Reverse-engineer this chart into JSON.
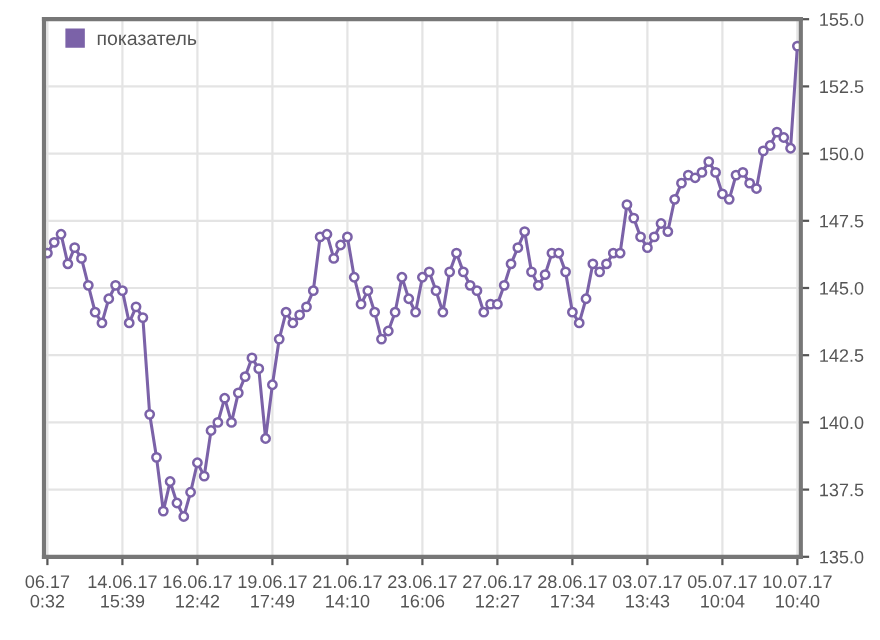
{
  "chart_data": {
    "type": "line",
    "marker": "circle",
    "grid": true,
    "legend": "top left",
    "categories": [
      "06.17\n0:32",
      null,
      null,
      null,
      null,
      null,
      null,
      null,
      null,
      null,
      null,
      "14.06.17\n15:39",
      null,
      null,
      null,
      null,
      null,
      null,
      null,
      null,
      null,
      null,
      "16.06.17\n12:42",
      null,
      null,
      null,
      null,
      null,
      null,
      null,
      null,
      null,
      null,
      "19.06.17\n17:49",
      null,
      null,
      null,
      null,
      null,
      null,
      null,
      null,
      null,
      null,
      "21.06.17\n14:10",
      null,
      null,
      null,
      null,
      null,
      null,
      null,
      null,
      null,
      null,
      "23.06.17\n16:06",
      null,
      null,
      null,
      null,
      null,
      null,
      null,
      null,
      null,
      null,
      "27.06.17\n12:27",
      null,
      null,
      null,
      null,
      null,
      null,
      null,
      null,
      null,
      null,
      "28.06.17\n17:34",
      null,
      null,
      null,
      null,
      null,
      null,
      null,
      null,
      null,
      null,
      "03.07.17\n13:43",
      null,
      null,
      null,
      null,
      null,
      null,
      null,
      null,
      null,
      null,
      "05.07.17\n10:04",
      null,
      null,
      null,
      null,
      null,
      null,
      null,
      null,
      null,
      null,
      "10.07.17\n10:40"
    ],
    "ylim": [
      135,
      155
    ],
    "yticks": [
      {
        "value": 135,
        "label": "135.0"
      },
      {
        "value": 137.5,
        "label": "137.5"
      },
      {
        "value": 140,
        "label": "140.0"
      },
      {
        "value": 142.5,
        "label": "142.5"
      },
      {
        "value": 145,
        "label": "145.0"
      },
      {
        "value": 147.5,
        "label": "147.5"
      },
      {
        "value": 150,
        "label": "150.0"
      },
      {
        "value": 152.5,
        "label": "152.5"
      },
      {
        "value": 155,
        "label": "155.0"
      }
    ],
    "series": [
      {
        "name": "показатель",
        "color": "#7b62a8",
        "values": [
          146.3,
          146.7,
          147.0,
          145.9,
          146.5,
          146.1,
          145.1,
          144.1,
          143.7,
          144.6,
          145.1,
          144.9,
          143.7,
          144.3,
          143.9,
          140.3,
          138.7,
          136.7,
          137.8,
          137.0,
          136.5,
          137.4,
          138.5,
          138.0,
          139.7,
          140.0,
          140.9,
          140.0,
          141.1,
          141.7,
          142.4,
          142.0,
          139.4,
          141.4,
          143.1,
          144.1,
          143.7,
          144.0,
          144.3,
          144.9,
          146.9,
          147.0,
          146.1,
          146.6,
          146.9,
          145.4,
          144.4,
          144.9,
          144.1,
          143.1,
          143.4,
          144.1,
          145.4,
          144.6,
          144.1,
          145.4,
          145.6,
          144.9,
          144.1,
          145.6,
          146.3,
          145.6,
          145.1,
          144.9,
          144.1,
          144.4,
          144.4,
          145.1,
          145.9,
          146.5,
          147.1,
          145.6,
          145.1,
          145.5,
          146.3,
          146.3,
          145.6,
          144.1,
          143.7,
          144.6,
          145.9,
          145.6,
          145.9,
          146.3,
          146.3,
          148.1,
          147.6,
          146.9,
          146.5,
          146.9,
          147.4,
          147.1,
          148.3,
          148.9,
          149.2,
          149.1,
          149.3,
          149.7,
          149.3,
          148.5,
          148.3,
          149.2,
          149.3,
          148.9,
          148.7,
          150.1,
          150.3,
          150.8,
          150.6,
          150.2,
          154.0
        ]
      }
    ]
  }
}
